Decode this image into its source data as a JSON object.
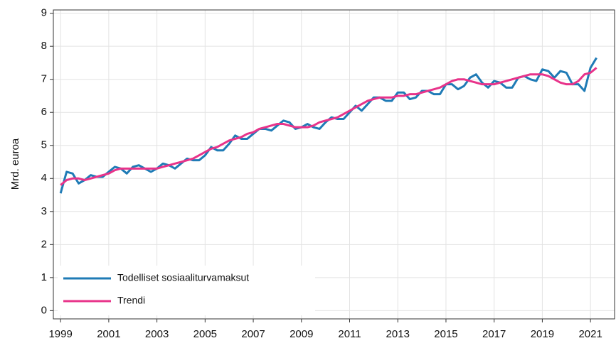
{
  "chart_data": {
    "type": "line",
    "ylabel": "Mrd. euroa",
    "x": [
      1999,
      1999.25,
      1999.5,
      1999.75,
      2000,
      2000.25,
      2000.5,
      2000.75,
      2001,
      2001.25,
      2001.5,
      2001.75,
      2002,
      2002.25,
      2002.5,
      2002.75,
      2003,
      2003.25,
      2003.5,
      2003.75,
      2004,
      2004.25,
      2004.5,
      2004.75,
      2005,
      2005.25,
      2005.5,
      2005.75,
      2006,
      2006.25,
      2006.5,
      2006.75,
      2007,
      2007.25,
      2007.5,
      2007.75,
      2008,
      2008.25,
      2008.5,
      2008.75,
      2009,
      2009.25,
      2009.5,
      2009.75,
      2010,
      2010.25,
      2010.5,
      2010.75,
      2011,
      2011.25,
      2011.5,
      2011.75,
      2012,
      2012.25,
      2012.5,
      2012.75,
      2013,
      2013.25,
      2013.5,
      2013.75,
      2014,
      2014.25,
      2014.5,
      2014.75,
      2015,
      2015.25,
      2015.5,
      2015.75,
      2016,
      2016.25,
      2016.5,
      2016.75,
      2017,
      2017.25,
      2017.5,
      2017.75,
      2018,
      2018.25,
      2018.5,
      2018.75,
      2019,
      2019.25,
      2019.5,
      2019.75,
      2020,
      2020.25,
      2020.5,
      2020.75,
      2021,
      2021.25
    ],
    "series": [
      {
        "name": "Todelliset sosiaaliturvamaksut",
        "color": "#1f7bb6",
        "values": [
          3.55,
          4.2,
          4.15,
          3.85,
          3.95,
          4.1,
          4.05,
          4.05,
          4.2,
          4.35,
          4.3,
          4.15,
          4.35,
          4.4,
          4.3,
          4.2,
          4.3,
          4.45,
          4.4,
          4.3,
          4.45,
          4.6,
          4.55,
          4.55,
          4.7,
          4.95,
          4.85,
          4.85,
          5.05,
          5.3,
          5.2,
          5.2,
          5.35,
          5.5,
          5.5,
          5.45,
          5.6,
          5.75,
          5.7,
          5.5,
          5.55,
          5.65,
          5.55,
          5.5,
          5.7,
          5.85,
          5.8,
          5.8,
          6.0,
          6.2,
          6.05,
          6.25,
          6.45,
          6.45,
          6.35,
          6.35,
          6.6,
          6.6,
          6.4,
          6.45,
          6.65,
          6.65,
          6.55,
          6.55,
          6.85,
          6.85,
          6.7,
          6.8,
          7.05,
          7.15,
          6.9,
          6.75,
          6.95,
          6.9,
          6.75,
          6.75,
          7.05,
          7.1,
          7.0,
          6.95,
          7.3,
          7.25,
          7.05,
          7.25,
          7.2,
          6.85,
          6.85,
          6.65,
          7.35,
          7.65
        ]
      },
      {
        "name": "Trendi",
        "color": "#e8338a",
        "values": [
          3.8,
          3.95,
          4.0,
          4.0,
          3.95,
          4.0,
          4.05,
          4.1,
          4.15,
          4.25,
          4.3,
          4.3,
          4.3,
          4.3,
          4.3,
          4.3,
          4.3,
          4.35,
          4.4,
          4.45,
          4.5,
          4.55,
          4.6,
          4.7,
          4.8,
          4.9,
          4.95,
          5.05,
          5.15,
          5.2,
          5.25,
          5.35,
          5.4,
          5.5,
          5.55,
          5.6,
          5.65,
          5.65,
          5.6,
          5.55,
          5.55,
          5.55,
          5.6,
          5.7,
          5.75,
          5.8,
          5.85,
          5.95,
          6.05,
          6.15,
          6.25,
          6.35,
          6.4,
          6.45,
          6.45,
          6.45,
          6.5,
          6.5,
          6.55,
          6.55,
          6.6,
          6.65,
          6.7,
          6.75,
          6.85,
          6.95,
          7.0,
          7.0,
          6.95,
          6.9,
          6.85,
          6.85,
          6.85,
          6.9,
          6.95,
          7.0,
          7.05,
          7.1,
          7.15,
          7.15,
          7.15,
          7.1,
          7.0,
          6.9,
          6.85,
          6.85,
          6.95,
          7.15,
          7.2,
          7.35
        ]
      }
    ],
    "xlim": [
      1998.7,
      2022.0
    ],
    "ylim": [
      -0.25,
      9.1
    ],
    "xticks": [
      1999,
      2001,
      2003,
      2005,
      2007,
      2009,
      2011,
      2013,
      2015,
      2017,
      2019,
      2021
    ],
    "yticks": [
      0,
      1,
      2,
      3,
      4,
      5,
      6,
      7,
      8,
      9
    ],
    "grid": true,
    "legend": "lower left"
  }
}
